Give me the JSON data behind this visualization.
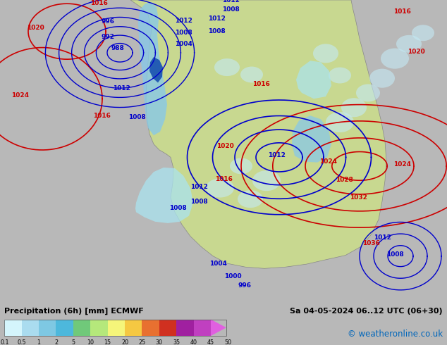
{
  "title_left": "Precipitation (6h) [mm] ECMWF",
  "title_right": "Sa 04-05-2024 06..12 UTC (06+30)",
  "credit": "© weatheronline.co.uk",
  "colorbar_colors": [
    "#d4f5fc",
    "#aadcef",
    "#7ec8e3",
    "#4db8dc",
    "#70c97a",
    "#b5e87b",
    "#f5f57a",
    "#f5c842",
    "#e87030",
    "#d03020",
    "#a020a0",
    "#c040c0",
    "#e060e0"
  ],
  "colorbar_labels": [
    "0.1",
    "0.5",
    "1",
    "2",
    "5",
    "10",
    "15",
    "20",
    "25",
    "30",
    "35",
    "40",
    "45",
    "50"
  ],
  "bg_color": "#b8b8b8",
  "ocean_color": "#ccdde8",
  "land_color": "#c8d890",
  "slp_color": "#cc0000",
  "z_color": "#0000cc",
  "fig_width": 6.34,
  "fig_height": 4.9,
  "dpi": 100
}
